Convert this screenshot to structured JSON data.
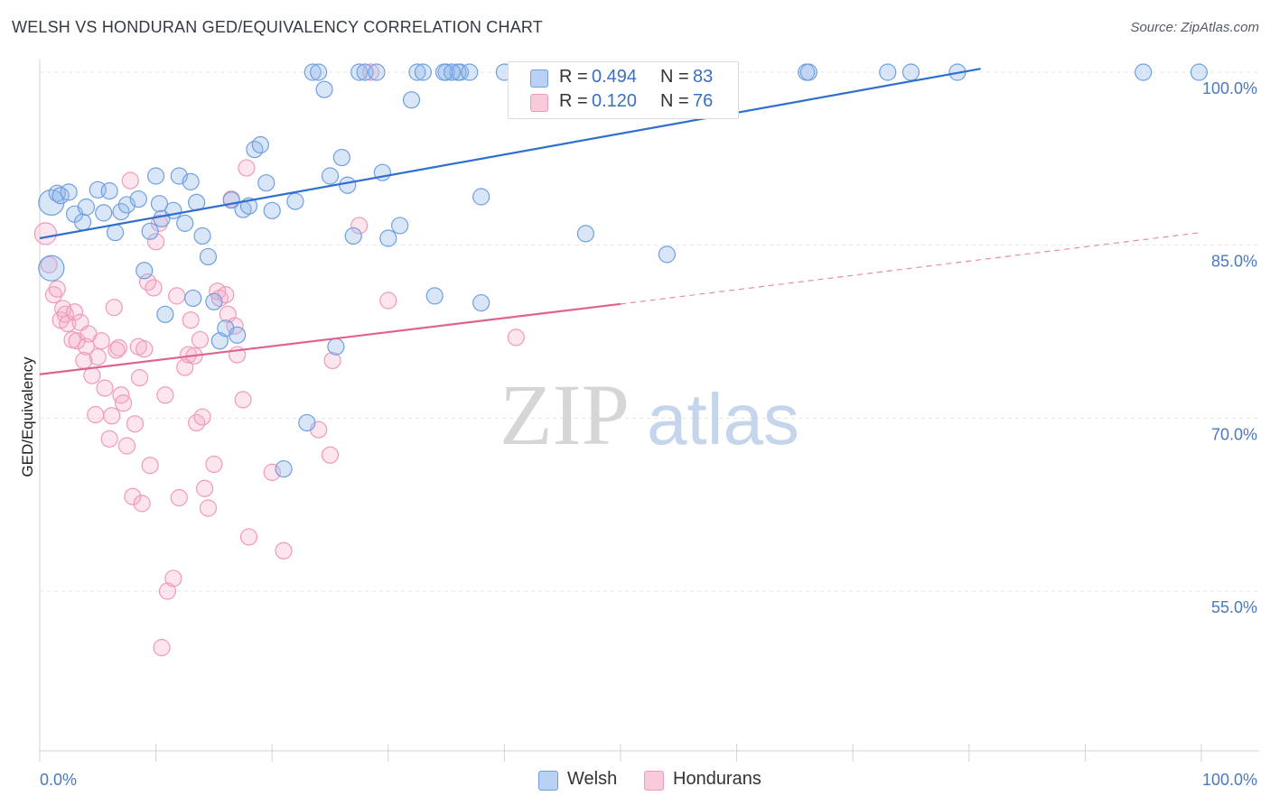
{
  "title": "WELSH VS HONDURAN GED/EQUIVALENCY CORRELATION CHART",
  "source": "Source: ZipAtlas.com",
  "watermark": {
    "zip": "ZIP",
    "atlas": "atlas"
  },
  "colors": {
    "welsh": "#6f9fe0",
    "hondurans": "#f09ab8",
    "welsh_line": "#2f6fcf",
    "hondurans_line": "#e0628f",
    "tick_text": "#4a79c0"
  },
  "legend": {
    "welsh": {
      "r_label": "R = ",
      "r_value": "0.494",
      "n_label": "N = ",
      "n_value": "83"
    },
    "hondurans": {
      "r_label": "R = ",
      "r_value": "0.120",
      "n_label": "N = ",
      "n_value": "76"
    }
  },
  "bottom_legend": {
    "welsh": "Welsh",
    "hondurans": "Hondurans"
  },
  "chart_data": {
    "type": "scatter",
    "title": "WELSH VS HONDURAN GED/EQUIVALENCY CORRELATION CHART",
    "xlabel": "",
    "ylabel": "GED/Equivalency",
    "x_tick_labels": [
      "0.0%",
      "100.0%"
    ],
    "y_tick_labels": [
      "100.0%",
      "85.0%",
      "70.0%",
      "55.0%"
    ],
    "y_ticks": [
      100,
      85,
      70,
      55
    ],
    "xlim": [
      0,
      100
    ],
    "ylim": [
      41.5,
      101
    ],
    "grid": true,
    "legend_position": "top-center",
    "series": [
      {
        "name": "Welsh",
        "r": 0.494,
        "n": 83,
        "trend": {
          "x": [
            0,
            81
          ],
          "y": [
            85.6,
            100.3
          ],
          "dashed_to": null
        },
        "points": [
          [
            1,
            88.7
          ],
          [
            1,
            83
          ],
          [
            1.5,
            89.5
          ],
          [
            1.8,
            89.3
          ],
          [
            2.5,
            89.6
          ],
          [
            3,
            87.7
          ],
          [
            3.7,
            87
          ],
          [
            4,
            88.3
          ],
          [
            5,
            89.8
          ],
          [
            5.5,
            87.8
          ],
          [
            6,
            89.7
          ],
          [
            6.5,
            86.1
          ],
          [
            7,
            87.9
          ],
          [
            7.5,
            88.5
          ],
          [
            8.5,
            89
          ],
          [
            9,
            82.8
          ],
          [
            9.5,
            86.2
          ],
          [
            10,
            91
          ],
          [
            10.5,
            87.3
          ],
          [
            10.8,
            79
          ],
          [
            11.5,
            88
          ],
          [
            12,
            91
          ],
          [
            12.5,
            86.9
          ],
          [
            13,
            90.5
          ],
          [
            13.2,
            80.4
          ],
          [
            13.5,
            88.7
          ],
          [
            14,
            85.8
          ],
          [
            14.5,
            84
          ],
          [
            15,
            80.1
          ],
          [
            15.5,
            76.7
          ],
          [
            16,
            77.8
          ],
          [
            16.5,
            88.9
          ],
          [
            17,
            77.2
          ],
          [
            17.5,
            88.1
          ],
          [
            18,
            88.4
          ],
          [
            18.5,
            93.3
          ],
          [
            19,
            93.7
          ],
          [
            19.5,
            90.4
          ],
          [
            20,
            88
          ],
          [
            22,
            88.8
          ],
          [
            23,
            69.6
          ],
          [
            23.5,
            100
          ],
          [
            24,
            100
          ],
          [
            24.5,
            98.5
          ],
          [
            25,
            91
          ],
          [
            25.5,
            76.2
          ],
          [
            26,
            92.6
          ],
          [
            26.5,
            90.2
          ],
          [
            27,
            85.8
          ],
          [
            27.5,
            100
          ],
          [
            28,
            100
          ],
          [
            29,
            100
          ],
          [
            29.5,
            91.3
          ],
          [
            30,
            85.6
          ],
          [
            31,
            86.7
          ],
          [
            32,
            97.6
          ],
          [
            32.5,
            100
          ],
          [
            33,
            100
          ],
          [
            34,
            80.6
          ],
          [
            35,
            100
          ],
          [
            36,
            100
          ],
          [
            36.2,
            100
          ],
          [
            37,
            100
          ],
          [
            38,
            89.2
          ],
          [
            38,
            80
          ],
          [
            40,
            100
          ],
          [
            44,
            100
          ],
          [
            45,
            100
          ],
          [
            47,
            86
          ],
          [
            50,
            100
          ],
          [
            54,
            84.2
          ],
          [
            66,
            100
          ],
          [
            66.2,
            100
          ],
          [
            73,
            100
          ],
          [
            75,
            100
          ],
          [
            79,
            100
          ],
          [
            95,
            100
          ],
          [
            99.8,
            100
          ],
          [
            21,
            65.6
          ],
          [
            34.8,
            100
          ],
          [
            35.5,
            100
          ],
          [
            42,
            100
          ],
          [
            10.3,
            88.6
          ]
        ]
      },
      {
        "name": "Hondurans",
        "r": 0.12,
        "n": 76,
        "trend": {
          "x": [
            0,
            50
          ],
          "y": [
            73.8,
            79.9
          ],
          "dashed_to": {
            "x": 100,
            "y": 86.1
          }
        },
        "points": [
          [
            0.5,
            86
          ],
          [
            0.8,
            83.3
          ],
          [
            1.2,
            80.7
          ],
          [
            1.5,
            81.2
          ],
          [
            1.8,
            78.5
          ],
          [
            2,
            79.5
          ],
          [
            2.2,
            79
          ],
          [
            2.4,
            78.2
          ],
          [
            2.8,
            76.8
          ],
          [
            3,
            79.2
          ],
          [
            3.2,
            76.7
          ],
          [
            3.5,
            78.3
          ],
          [
            3.8,
            75
          ],
          [
            4,
            76.2
          ],
          [
            4.2,
            77.3
          ],
          [
            4.5,
            73.7
          ],
          [
            4.8,
            70.3
          ],
          [
            5,
            75.3
          ],
          [
            5.3,
            76.7
          ],
          [
            5.6,
            72.6
          ],
          [
            6,
            68.2
          ],
          [
            6.2,
            70.2
          ],
          [
            6.4,
            79.6
          ],
          [
            6.6,
            75.9
          ],
          [
            6.8,
            76.1
          ],
          [
            7,
            72
          ],
          [
            7.2,
            71.3
          ],
          [
            7.5,
            67.6
          ],
          [
            7.8,
            90.6
          ],
          [
            8,
            63.2
          ],
          [
            8.2,
            69.5
          ],
          [
            8.5,
            76.2
          ],
          [
            8.6,
            73.5
          ],
          [
            8.8,
            62.6
          ],
          [
            9,
            76
          ],
          [
            9.3,
            81.8
          ],
          [
            9.5,
            65.9
          ],
          [
            9.8,
            81.3
          ],
          [
            10,
            85.3
          ],
          [
            10.3,
            86.9
          ],
          [
            10.5,
            50.1
          ],
          [
            10.8,
            72
          ],
          [
            11,
            55
          ],
          [
            11.5,
            56.1
          ],
          [
            11.8,
            80.6
          ],
          [
            12,
            63.1
          ],
          [
            12.5,
            74.4
          ],
          [
            12.8,
            75.5
          ],
          [
            13,
            78.5
          ],
          [
            13.3,
            75.4
          ],
          [
            13.5,
            69.6
          ],
          [
            13.8,
            76.8
          ],
          [
            14,
            70.1
          ],
          [
            14.2,
            63.9
          ],
          [
            14.5,
            62.2
          ],
          [
            15,
            66
          ],
          [
            15.3,
            81
          ],
          [
            15.5,
            80.4
          ],
          [
            16,
            80.7
          ],
          [
            16.2,
            79
          ],
          [
            16.5,
            89
          ],
          [
            16.8,
            78
          ],
          [
            17,
            75.5
          ],
          [
            17.5,
            71.6
          ],
          [
            17.8,
            91.7
          ],
          [
            18,
            59.7
          ],
          [
            20,
            65.3
          ],
          [
            21,
            58.5
          ],
          [
            24,
            69
          ],
          [
            25,
            66.8
          ],
          [
            25.2,
            75
          ],
          [
            27.5,
            86.7
          ],
          [
            28.5,
            100
          ],
          [
            30,
            80.2
          ],
          [
            41,
            77
          ],
          [
            49,
            100
          ]
        ]
      }
    ]
  }
}
